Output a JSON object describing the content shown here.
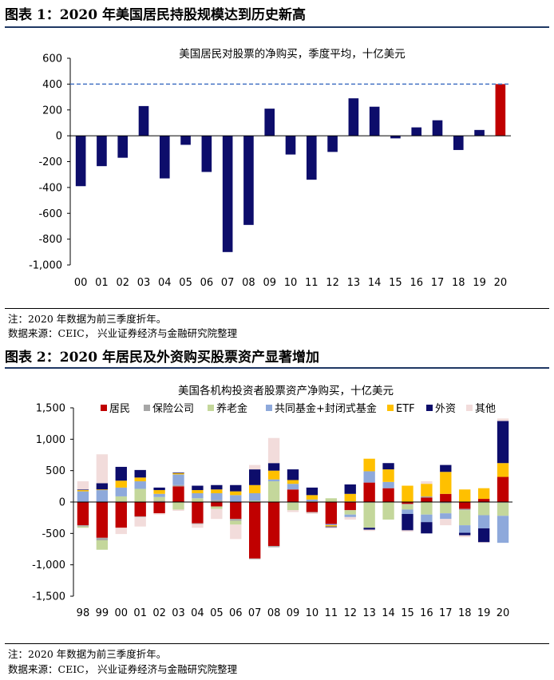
{
  "figure1": {
    "title": "图表 1：2020 年美国居民持股规模达到历史新高",
    "note": "注：2020 年数据为前三季度折年。",
    "source": "数据来源：CEIC，  兴业证券经济与金融研究院整理"
  },
  "figure2": {
    "title": "图表 2：2020 年居民及外资购买股票资产显著增加",
    "note": "注：2020 年数据为前三季度折年。",
    "source": "数据来源：CEIC，  兴业证券经济与金融研究院整理"
  },
  "colors": {
    "navy": "#0D0D6B",
    "red": "#C00000",
    "dashed_line": "#4472C4",
    "residents": "#C00000",
    "insurance": "#A6A6A6",
    "pension": "#C4D79B",
    "funds": "#8EA9DB",
    "etf": "#FFC000",
    "foreign": "#0D0D6B",
    "other": "#F2DCDB"
  },
  "chart_data": [
    {
      "type": "bar",
      "title": "美国居民对股票的净购买，季度平均，十亿美元",
      "categories": [
        "00",
        "01",
        "02",
        "03",
        "04",
        "05",
        "06",
        "07",
        "08",
        "09",
        "10",
        "11",
        "12",
        "13",
        "14",
        "15",
        "16",
        "17",
        "18",
        "19",
        "20"
      ],
      "values": [
        -390,
        -235,
        -170,
        230,
        -330,
        -70,
        -280,
        -900,
        -690,
        210,
        -145,
        -340,
        -125,
        290,
        225,
        -20,
        65,
        120,
        -110,
        45,
        400
      ],
      "highlight_last": true,
      "reference_line": 400,
      "ylim": [
        -1000,
        600
      ],
      "yticks": [
        "600",
        "400",
        "200",
        "0",
        "-200",
        "-400",
        "-600",
        "-800",
        "-1,000"
      ],
      "grid": false
    },
    {
      "type": "bar",
      "stacked": true,
      "title": "美国各机构投资者股票资产净购买，十亿美元",
      "legend_position": "top",
      "categories": [
        "98",
        "99",
        "00",
        "01",
        "02",
        "03",
        "04",
        "05",
        "06",
        "07",
        "08",
        "09",
        "10",
        "11",
        "12",
        "13",
        "14",
        "15",
        "16",
        "17",
        "18",
        "19",
        "20"
      ],
      "ylim": [
        -1500,
        1500
      ],
      "yticks": [
        "1,500",
        "1,000",
        "500",
        "0",
        "-500",
        "-1,000",
        "-1,500"
      ],
      "grid": false,
      "series": [
        {
          "name": "居民",
          "key": "residents",
          "values": [
            -370,
            -570,
            -410,
            -230,
            -180,
            250,
            -340,
            -70,
            -270,
            -900,
            -700,
            200,
            -160,
            -350,
            -130,
            310,
            220,
            -30,
            70,
            130,
            -110,
            50,
            400
          ]
        },
        {
          "name": "保险公司",
          "key": "insurance",
          "values": [
            -20,
            -40,
            10,
            -10,
            20,
            20,
            -10,
            30,
            -30,
            -10,
            -20,
            -10,
            -10,
            0,
            10,
            -10,
            0,
            -10,
            20,
            -20,
            -20,
            -10,
            -10
          ]
        },
        {
          "name": "养老金",
          "key": "pension",
          "values": [
            -20,
            -150,
            80,
            210,
            60,
            -120,
            60,
            -40,
            -60,
            20,
            330,
            -120,
            10,
            60,
            -70,
            -400,
            -280,
            -80,
            -200,
            -160,
            -240,
            -200,
            -210
          ]
        },
        {
          "name": "共同基金+封闭式基金",
          "key": "funds",
          "values": [
            170,
            190,
            140,
            120,
            50,
            170,
            80,
            110,
            110,
            120,
            30,
            90,
            30,
            -20,
            -40,
            180,
            100,
            -70,
            -120,
            -90,
            -120,
            -210,
            -430
          ]
        },
        {
          "name": "ETF",
          "key": "etf",
          "values": [
            20,
            10,
            110,
            60,
            60,
            20,
            50,
            60,
            60,
            130,
            140,
            60,
            70,
            -20,
            120,
            200,
            200,
            260,
            200,
            350,
            200,
            170,
            220
          ]
        },
        {
          "name": "外资",
          "key": "foreign",
          "values": [
            10,
            100,
            220,
            120,
            40,
            10,
            70,
            70,
            100,
            250,
            120,
            170,
            120,
            -10,
            150,
            -30,
            100,
            -260,
            -180,
            110,
            -40,
            -220,
            670
          ]
        },
        {
          "name": "其他",
          "key": "other",
          "values": [
            130,
            460,
            -100,
            -150,
            -20,
            -20,
            -60,
            -160,
            -230,
            70,
            400,
            -30,
            -20,
            -20,
            -40,
            -20,
            0,
            -20,
            40,
            -100,
            -30,
            -10,
            40
          ]
        }
      ]
    }
  ]
}
